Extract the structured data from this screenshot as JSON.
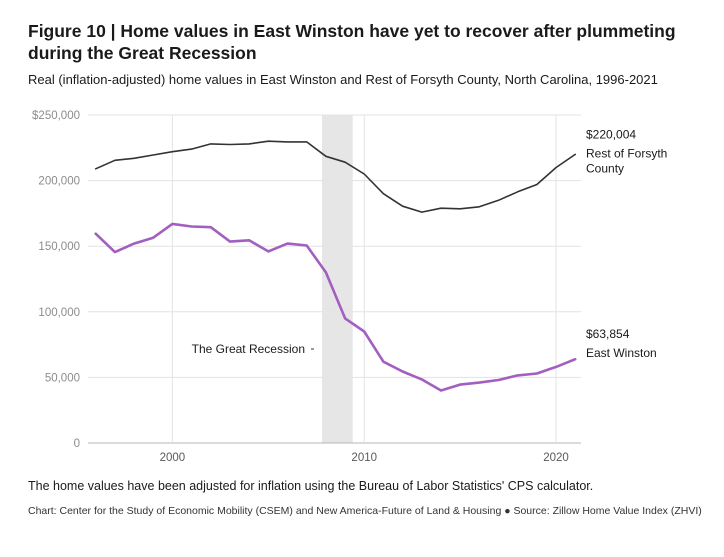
{
  "header": {
    "title": "Figure 10 | Home values in East Winston have yet to recover after plummeting during the Great Recession",
    "subtitle": "Real (inflation-adjusted) home values in East Winston and Rest of Forsyth County, North Carolina, 1996-2021"
  },
  "footer": {
    "note": "The home values have been adjusted for inflation using the Bureau of Labor Statistics' CPS calculator.",
    "source": "Chart: Center for the Study of Economic Mobility (CSEM) and New America-Future of Land & Housing ● Source: Zillow Home Value Index (ZHVI)"
  },
  "chart_data": {
    "type": "line",
    "x": [
      1996,
      1997,
      1998,
      1999,
      2000,
      2001,
      2002,
      2003,
      2004,
      2005,
      2006,
      2007,
      2008,
      2009,
      2010,
      2011,
      2012,
      2013,
      2014,
      2015,
      2016,
      2017,
      2018,
      2019,
      2020,
      2021
    ],
    "series": [
      {
        "name": "Rest of Forsyth County",
        "color": "#333333",
        "end_value_label": "$220,004",
        "label_lines": [
          "Rest of Forsyth",
          "County"
        ],
        "values": [
          209000,
          215500,
          217000,
          219500,
          222000,
          224000,
          228000,
          227500,
          228000,
          230000,
          229500,
          229500,
          218500,
          214000,
          205000,
          190000,
          180500,
          176000,
          179000,
          178500,
          180000,
          185000,
          191500,
          197000,
          210000,
          220004
        ]
      },
      {
        "name": "East Winston",
        "color": "#a25fc0",
        "end_value_label": "$63,854",
        "label_lines": [
          "East Winston"
        ],
        "values": [
          159500,
          145500,
          152000,
          156500,
          167000,
          165000,
          164500,
          153500,
          154500,
          146000,
          152000,
          150500,
          130000,
          95000,
          85000,
          62000,
          54500,
          48500,
          40000,
          44500,
          46000,
          48000,
          51500,
          53000,
          58000,
          63854
        ]
      }
    ],
    "y_ticks": [
      0,
      50000,
      100000,
      150000,
      200000,
      250000
    ],
    "y_tick_labels": [
      "0",
      "50,000",
      "100,000",
      "150,000",
      "200,000",
      "$250,000"
    ],
    "x_ticks": [
      2000,
      2010,
      2020
    ],
    "x_tick_labels": [
      "2000",
      "2010",
      "2020"
    ],
    "ylim": [
      0,
      250000
    ],
    "xlim": [
      1995.6,
      2021.3
    ],
    "grid": true,
    "shaded_region": {
      "start": 2007.8,
      "end": 2009.4,
      "label": "The Great Recession",
      "color": "#e6e6e6"
    }
  }
}
